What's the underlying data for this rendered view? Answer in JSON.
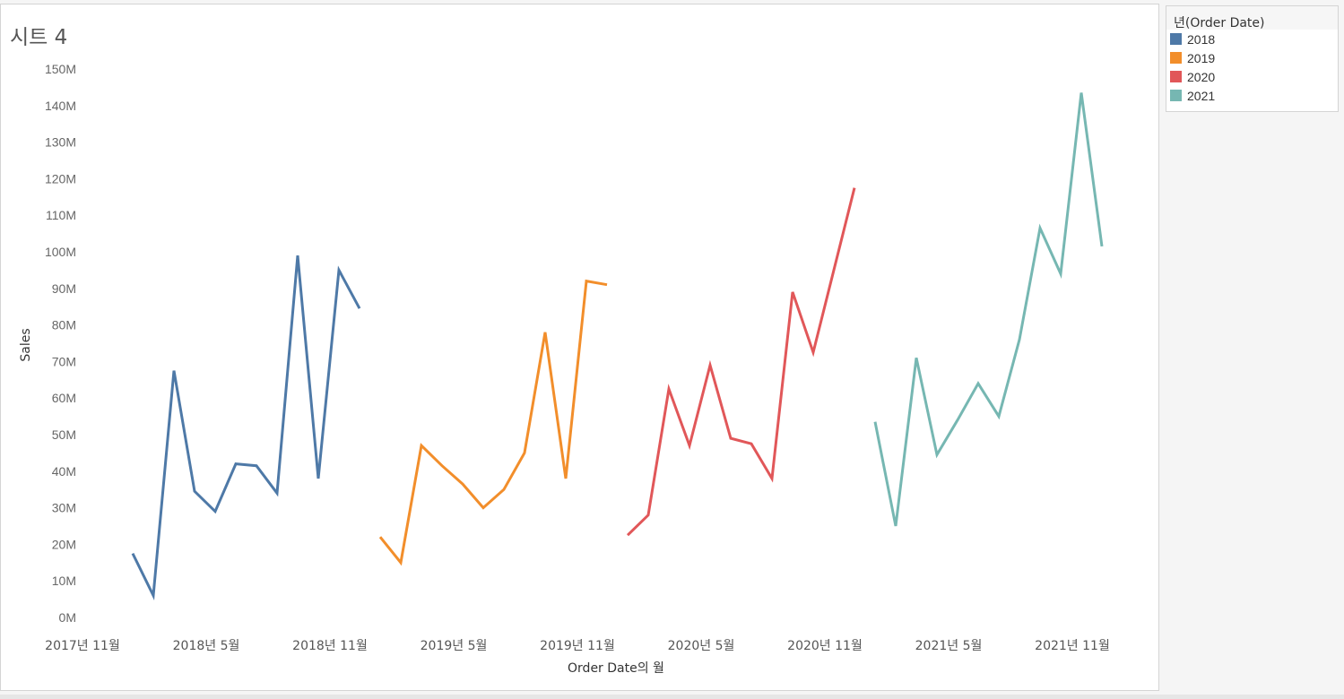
{
  "sheet": {
    "title": "시트 4"
  },
  "legend": {
    "title": "년(Order Date)",
    "items": [
      {
        "label": "2018",
        "color": "#4e79a7"
      },
      {
        "label": "2019",
        "color": "#f28e2b"
      },
      {
        "label": "2020",
        "color": "#e15759"
      },
      {
        "label": "2021",
        "color": "#76b7b2"
      }
    ]
  },
  "chart_data": {
    "type": "line",
    "title": "시트 4",
    "xlabel": "Order Date의 월",
    "ylabel": "Sales",
    "ylim": [
      0,
      150
    ],
    "y_unit": "M",
    "y_ticks": [
      {
        "value": 0,
        "label": "0M"
      },
      {
        "value": 10,
        "label": "10M"
      },
      {
        "value": 20,
        "label": "20M"
      },
      {
        "value": 30,
        "label": "30M"
      },
      {
        "value": 40,
        "label": "40M"
      },
      {
        "value": 50,
        "label": "50M"
      },
      {
        "value": 60,
        "label": "60M"
      },
      {
        "value": 70,
        "label": "70M"
      },
      {
        "value": 80,
        "label": "80M"
      },
      {
        "value": 90,
        "label": "90M"
      },
      {
        "value": 100,
        "label": "100M"
      },
      {
        "value": 110,
        "label": "110M"
      },
      {
        "value": 120,
        "label": "120M"
      },
      {
        "value": 130,
        "label": "130M"
      },
      {
        "value": 140,
        "label": "140M"
      },
      {
        "value": 150,
        "label": "150M"
      }
    ],
    "x_ticks": [
      {
        "month": "2017-11",
        "label": "2017년 11월"
      },
      {
        "month": "2018-05",
        "label": "2018년 5월"
      },
      {
        "month": "2018-11",
        "label": "2018년 11월"
      },
      {
        "month": "2019-05",
        "label": "2019년 5월"
      },
      {
        "month": "2019-11",
        "label": "2019년 11월"
      },
      {
        "month": "2020-05",
        "label": "2020년 5월"
      },
      {
        "month": "2020-11",
        "label": "2020년 11월"
      },
      {
        "month": "2021-05",
        "label": "2021년 5월"
      },
      {
        "month": "2021-11",
        "label": "2021년 11월"
      }
    ],
    "series": [
      {
        "name": "2018",
        "color": "#4e79a7",
        "months": [
          "2018-01",
          "2018-02",
          "2018-03",
          "2018-04",
          "2018-05",
          "2018-06",
          "2018-07",
          "2018-08",
          "2018-09",
          "2018-10",
          "2018-11",
          "2018-12"
        ],
        "values": [
          17.5,
          6,
          67.5,
          34.5,
          29,
          42,
          41.5,
          34,
          99,
          38,
          95,
          84.5
        ]
      },
      {
        "name": "2019",
        "color": "#f28e2b",
        "months": [
          "2019-01",
          "2019-02",
          "2019-03",
          "2019-04",
          "2019-05",
          "2019-06",
          "2019-07",
          "2019-08",
          "2019-09",
          "2019-10",
          "2019-11",
          "2019-12"
        ],
        "values": [
          22,
          15,
          47,
          41.5,
          36.5,
          30,
          35,
          45,
          78,
          38,
          92,
          91
        ]
      },
      {
        "name": "2020",
        "color": "#e15759",
        "months": [
          "2020-01",
          "2020-02",
          "2020-03",
          "2020-04",
          "2020-05",
          "2020-06",
          "2020-07",
          "2020-08",
          "2020-09",
          "2020-10",
          "2020-11",
          "2020-12"
        ],
        "values": [
          22.5,
          28,
          62.5,
          47,
          69,
          49,
          47.5,
          38,
          89,
          72.5,
          95,
          117.5
        ]
      },
      {
        "name": "2021",
        "color": "#76b7b2",
        "months": [
          "2021-01",
          "2021-02",
          "2021-03",
          "2021-04",
          "2021-05",
          "2021-06",
          "2021-07",
          "2021-08",
          "2021-09",
          "2021-10",
          "2021-11",
          "2021-12"
        ],
        "values": [
          53.5,
          25,
          71,
          44.5,
          54,
          64,
          55,
          76,
          106.5,
          94,
          143.5,
          101.5
        ]
      }
    ]
  }
}
